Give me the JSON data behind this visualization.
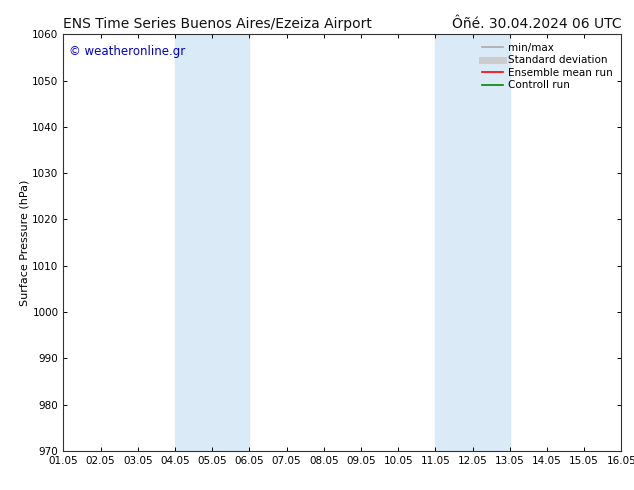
{
  "title_left": "ENS Time Series Buenos Aires/Ezeiza Airport",
  "title_right": "Ôñé. 30.04.2024 06 UTC",
  "ylabel": "Surface Pressure (hPa)",
  "ylim": [
    970,
    1060
  ],
  "yticks": [
    970,
    980,
    990,
    1000,
    1010,
    1020,
    1030,
    1040,
    1050,
    1060
  ],
  "xtick_labels": [
    "01.05",
    "02.05",
    "03.05",
    "04.05",
    "05.05",
    "06.05",
    "07.05",
    "08.05",
    "09.05",
    "10.05",
    "11.05",
    "12.05",
    "13.05",
    "14.05",
    "15.05",
    "16.05"
  ],
  "watermark": "© weatheronline.gr",
  "watermark_color": "#0000cc",
  "background_color": "#ffffff",
  "plot_bg_color": "#ffffff",
  "shaded_regions": [
    {
      "xstart": 3,
      "xend": 5,
      "color": "#daeaf7"
    },
    {
      "xstart": 10,
      "xend": 12,
      "color": "#daeaf7"
    }
  ],
  "legend_items": [
    {
      "label": "min/max",
      "color": "#aaaaaa",
      "lw": 1.2,
      "ls": "-"
    },
    {
      "label": "Standard deviation",
      "color": "#cccccc",
      "lw": 5,
      "ls": "-"
    },
    {
      "label": "Ensemble mean run",
      "color": "#ff0000",
      "lw": 1.2,
      "ls": "-"
    },
    {
      "label": "Controll run",
      "color": "#008800",
      "lw": 1.2,
      "ls": "-"
    }
  ],
  "title_fontsize": 10,
  "tick_fontsize": 7.5,
  "ylabel_fontsize": 8,
  "watermark_fontsize": 8.5,
  "legend_fontsize": 7.5
}
